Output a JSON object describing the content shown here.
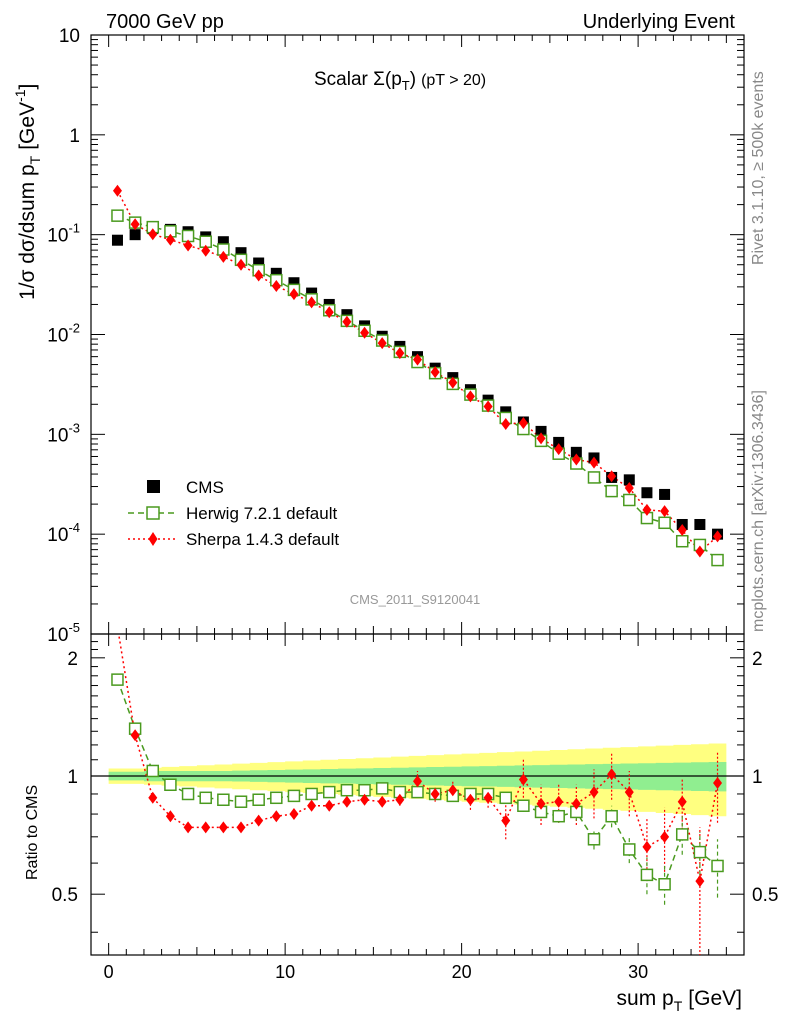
{
  "header": {
    "left": "7000 GeV pp",
    "right": "Underlying Event",
    "title_main": "Scalar ",
    "title_sigma": "Σ(p",
    "title_sub": "T",
    "title_close": ")",
    "title_cut": "(pT > 20)"
  },
  "side": {
    "rivet": "Rivet 3.1.10, ≥ 500k events",
    "mcplots": "mcplots.cern.ch [arXiv:1306.3436]"
  },
  "watermark": "CMS_2011_S9120041",
  "axes": {
    "ylabel_main_prefix": "1/σ dσ/dsum p",
    "ylabel_main_sub": "T",
    "ylabel_main_unit": "[GeV",
    "ylabel_main_sup": "-1",
    "ylabel_main_close": "]",
    "ylabel_ratio": "Ratio to CMS",
    "xlabel_prefix": "sum p",
    "xlabel_sub": "T",
    "xlabel_unit": "[GeV]"
  },
  "legend": [
    {
      "label": "CMS",
      "color": "#000000",
      "marker": "square"
    },
    {
      "label": "Herwig 7.2.1 default",
      "color": "#4a9a1f",
      "marker": "open-square"
    },
    {
      "label": "Sherpa 1.4.3 default",
      "color": "#ff0000",
      "marker": "diamond"
    }
  ],
  "chart_data": {
    "type": "scatter",
    "x": [
      0.5,
      1.5,
      2.5,
      3.5,
      4.5,
      5.5,
      6.5,
      7.5,
      8.5,
      9.5,
      10.5,
      11.5,
      12.5,
      13.5,
      14.5,
      15.5,
      16.5,
      17.5,
      18.5,
      19.5,
      20.5,
      21.5,
      22.5,
      23.5,
      24.5,
      25.5,
      26.5,
      27.5,
      28.5,
      29.5,
      30.5,
      31.5,
      32.5,
      33.5,
      34.5
    ],
    "xlim": [
      -1,
      36
    ],
    "ylim_main": [
      1e-05,
      10
    ],
    "ylim_main_scale": "log",
    "ylim_ratio": [
      0.35,
      2.3
    ],
    "ylim_ratio_scale": "log",
    "x_ticks": [
      0,
      10,
      20,
      30
    ],
    "series": [
      {
        "name": "CMS",
        "values": [
          0.088,
          0.1,
          0.115,
          0.113,
          0.107,
          0.095,
          0.085,
          0.066,
          0.052,
          0.041,
          0.033,
          0.026,
          0.02,
          0.0158,
          0.0122,
          0.0096,
          0.0076,
          0.006,
          0.0046,
          0.0037,
          0.0028,
          0.0022,
          0.00168,
          0.00133,
          0.00107,
          0.00083,
          0.00066,
          0.00058,
          0.00037,
          0.00035,
          0.00026,
          0.00025,
          0.000125,
          0.000125,
          0.0001
        ]
      },
      {
        "name": "Herwig 7.2.1 default",
        "values": [
          0.155,
          0.132,
          0.119,
          0.108,
          0.097,
          0.085,
          0.071,
          0.056,
          0.044,
          0.035,
          0.028,
          0.0225,
          0.0175,
          0.0137,
          0.0109,
          0.0087,
          0.0067,
          0.0053,
          0.0041,
          0.0032,
          0.0025,
          0.00194,
          0.00146,
          0.00113,
          0.00086,
          0.00064,
          0.00051,
          0.00037,
          0.00027,
          0.00022,
          0.000145,
          0.00013,
          8.5e-05,
          7.8e-05,
          5.5e-05
        ]
      },
      {
        "name": "Sherpa 1.4.3 default",
        "values": [
          0.275,
          0.127,
          0.101,
          0.089,
          0.078,
          0.069,
          0.06,
          0.05,
          0.039,
          0.0306,
          0.0254,
          0.021,
          0.0167,
          0.0134,
          0.0104,
          0.0082,
          0.0065,
          0.0056,
          0.0042,
          0.0033,
          0.0024,
          0.0019,
          0.00127,
          0.0013,
          0.00091,
          0.00071,
          0.00056,
          0.00052,
          0.00038,
          0.00029,
          0.000175,
          0.00017,
          0.00011,
          6.7e-05,
          9.5e-05
        ]
      }
    ],
    "ratio_series": [
      {
        "name": "Herwig 7.2.1 default",
        "values": [
          1.76,
          1.32,
          1.03,
          0.95,
          0.9,
          0.88,
          0.87,
          0.86,
          0.87,
          0.88,
          0.89,
          0.9,
          0.91,
          0.92,
          0.92,
          0.93,
          0.91,
          0.91,
          0.9,
          0.89,
          0.9,
          0.9,
          0.88,
          0.84,
          0.81,
          0.79,
          0.81,
          0.69,
          0.79,
          0.65,
          0.56,
          0.53,
          0.71,
          0.64,
          0.59
        ]
      },
      {
        "name": "Sherpa 1.4.3 default",
        "values": [
          2.4,
          1.27,
          0.88,
          0.79,
          0.74,
          0.74,
          0.74,
          0.74,
          0.77,
          0.79,
          0.8,
          0.84,
          0.84,
          0.86,
          0.87,
          0.86,
          0.87,
          0.97,
          0.9,
          0.92,
          0.87,
          0.88,
          0.77,
          0.98,
          0.85,
          0.86,
          0.85,
          0.91,
          1.01,
          0.91,
          0.66,
          0.7,
          0.86,
          0.54,
          0.96
        ]
      }
    ],
    "ratio_errors": {
      "herwig": [
        0.02,
        0.02,
        0.02,
        0.02,
        0.02,
        0.02,
        0.02,
        0.02,
        0.02,
        0.02,
        0.02,
        0.02,
        0.02,
        0.02,
        0.02,
        0.02,
        0.02,
        0.02,
        0.02,
        0.02,
        0.02,
        0.02,
        0.03,
        0.03,
        0.03,
        0.03,
        0.04,
        0.04,
        0.05,
        0.05,
        0.06,
        0.06,
        0.08,
        0.08,
        0.1
      ],
      "sherpa": [
        0.05,
        0.02,
        0.02,
        0.02,
        0.02,
        0.02,
        0.02,
        0.02,
        0.02,
        0.02,
        0.02,
        0.02,
        0.02,
        0.02,
        0.02,
        0.02,
        0.03,
        0.06,
        0.04,
        0.05,
        0.05,
        0.05,
        0.08,
        0.12,
        0.1,
        0.1,
        0.1,
        0.13,
        0.14,
        0.12,
        0.12,
        0.13,
        0.13,
        0.2,
        0.2
      ]
    },
    "ratio_band": {
      "inner_halfwidth": [
        0.025,
        0.025,
        0.03,
        0.03,
        0.03,
        0.03,
        0.03,
        0.032,
        0.034,
        0.036,
        0.038,
        0.04,
        0.042,
        0.044,
        0.046,
        0.048,
        0.05,
        0.052,
        0.054,
        0.056,
        0.058,
        0.06,
        0.062,
        0.064,
        0.066,
        0.068,
        0.07,
        0.072,
        0.074,
        0.076,
        0.078,
        0.08,
        0.082,
        0.084,
        0.086
      ],
      "outer_halfwidth": [
        0.045,
        0.045,
        0.05,
        0.055,
        0.06,
        0.065,
        0.07,
        0.075,
        0.08,
        0.085,
        0.09,
        0.095,
        0.1,
        0.105,
        0.11,
        0.115,
        0.12,
        0.125,
        0.13,
        0.135,
        0.14,
        0.145,
        0.15,
        0.155,
        0.16,
        0.165,
        0.17,
        0.175,
        0.18,
        0.185,
        0.19,
        0.195,
        0.2,
        0.205,
        0.21
      ]
    },
    "colors": {
      "cms": "#000000",
      "herwig": "#4a9a1f",
      "sherpa": "#ff0000",
      "band_inner": "#90ee90",
      "band_outer": "#ffff80"
    }
  }
}
